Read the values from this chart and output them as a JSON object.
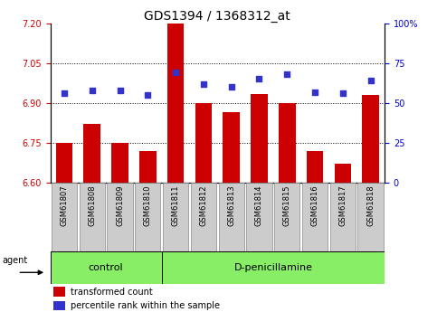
{
  "title": "GDS1394 / 1368312_at",
  "samples": [
    "GSM61807",
    "GSM61808",
    "GSM61809",
    "GSM61810",
    "GSM61811",
    "GSM61812",
    "GSM61813",
    "GSM61814",
    "GSM61815",
    "GSM61816",
    "GSM61817",
    "GSM61818"
  ],
  "bar_values": [
    6.75,
    6.82,
    6.75,
    6.72,
    7.2,
    6.9,
    6.865,
    6.935,
    6.9,
    6.72,
    6.67,
    6.93
  ],
  "dot_values": [
    56,
    58,
    58,
    55,
    69,
    62,
    60,
    65,
    68,
    57,
    56,
    64
  ],
  "ylim_left": [
    6.6,
    7.2
  ],
  "ylim_right": [
    0,
    100
  ],
  "yticks_left": [
    6.6,
    6.75,
    6.9,
    7.05,
    7.2
  ],
  "yticks_right": [
    0,
    25,
    50,
    75,
    100
  ],
  "bar_color": "#cc0000",
  "dot_color": "#3333cc",
  "bar_width": 0.6,
  "control_count": 4,
  "group_labels": [
    "control",
    "D-penicillamine"
  ],
  "group_bg": "#88ee66",
  "tick_bg": "#cccccc",
  "legend_bar_label": "transformed count",
  "legend_dot_label": "percentile rank within the sample",
  "agent_label": "agent",
  "grid_color": "#000000",
  "left_tick_color": "#cc0000",
  "right_tick_color": "#0000cc",
  "plot_bg": "#ffffff",
  "title_fontsize": 10,
  "tick_fontsize": 7,
  "sample_fontsize": 6
}
